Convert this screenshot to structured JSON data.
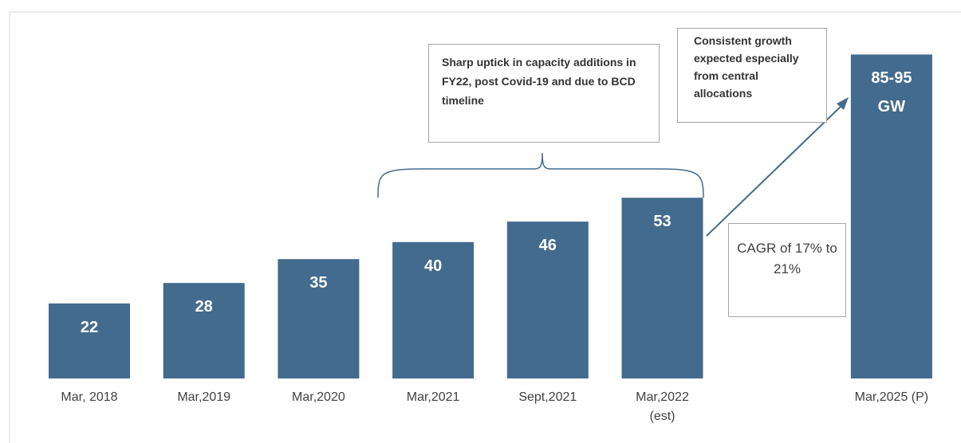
{
  "chart_data": {
    "type": "bar",
    "categories": [
      "Mar, 2018",
      "Mar,2019",
      "Mar,2020",
      "Mar,2021",
      "Sept,2021",
      "Mar,2022\n(est)",
      "Mar,2025 (P)"
    ],
    "values": [
      22,
      28,
      35,
      40,
      46,
      53,
      95
    ],
    "value_labels": [
      "22",
      "28",
      "35",
      "40",
      "46",
      "53",
      "85-95\nGW"
    ],
    "color": "#436b8e",
    "ylim": [
      0,
      100
    ],
    "annotations": [
      "Sharp uptick in capacity additions in FY22, post Covid-19 and due to BCD timeline",
      "Consistent growth expected especially from central allocations",
      "CAGR of 17% to 21%"
    ]
  }
}
